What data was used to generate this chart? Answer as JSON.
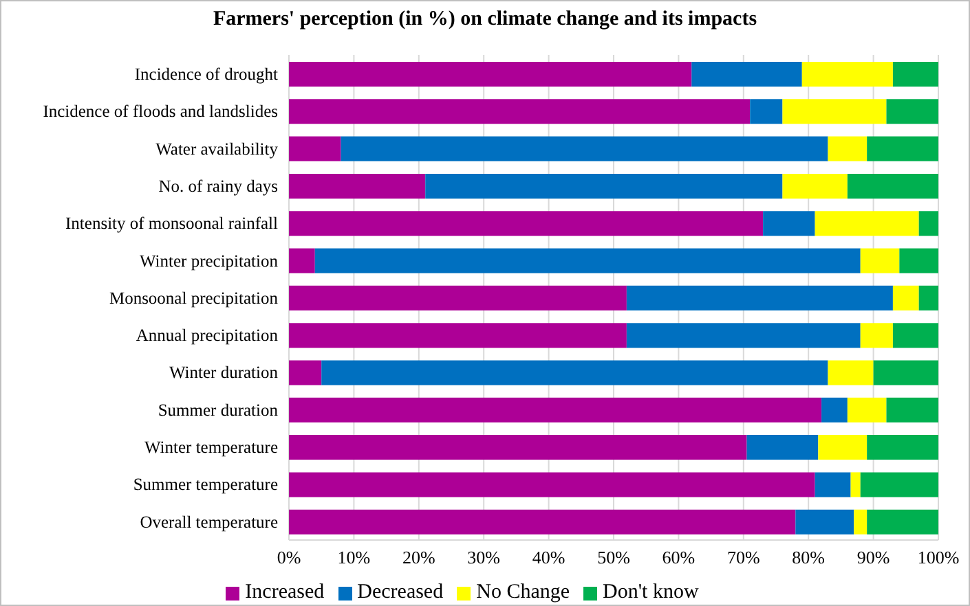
{
  "chart_data": {
    "type": "bar",
    "orientation": "horizontal",
    "stacked": true,
    "title": "Farmers' perception (in %) on climate change and its impacts",
    "categories": [
      "Incidence of drought",
      "Incidence of floods and landslides",
      "Water availability",
      "No. of rainy days",
      "Intensity of monsoonal rainfall",
      "Winter precipitation",
      "Monsoonal precipitation",
      "Annual precipitation",
      "Winter duration",
      "Summer duration",
      "Winter temperature",
      "Summer temperature",
      "Overall temperature"
    ],
    "series": [
      {
        "name": "Increased",
        "color": "#ad0096",
        "values": [
          62,
          71,
          8,
          21,
          73,
          4,
          52,
          52,
          5,
          82,
          70.5,
          81,
          78
        ]
      },
      {
        "name": "Decreased",
        "color": "#0070c0",
        "values": [
          17,
          5,
          75,
          55,
          8,
          84,
          41,
          36,
          78,
          4,
          11,
          5.5,
          9
        ]
      },
      {
        "name": "No Change",
        "color": "#ffff00",
        "values": [
          14,
          16,
          6,
          10,
          16,
          6,
          4,
          5,
          7,
          6,
          7.5,
          1.5,
          2
        ]
      },
      {
        "name": "Don't know",
        "color": "#00b050",
        "values": [
          7,
          8,
          11,
          14,
          3,
          6,
          3,
          7,
          10,
          8,
          11,
          12,
          11
        ]
      }
    ],
    "xlim": [
      0,
      100
    ],
    "xticks": [
      {
        "value": 0,
        "label": "0%"
      },
      {
        "value": 10,
        "label": "10%"
      },
      {
        "value": 20,
        "label": "20%"
      },
      {
        "value": 30,
        "label": "30%"
      },
      {
        "value": 40,
        "label": "40%"
      },
      {
        "value": 50,
        "label": "50%"
      },
      {
        "value": 60,
        "label": "60%"
      },
      {
        "value": 70,
        "label": "70%"
      },
      {
        "value": 80,
        "label": "80%"
      },
      {
        "value": 90,
        "label": "90%"
      },
      {
        "value": 100,
        "label": "100%"
      }
    ],
    "grid": "x",
    "legend": "bottom"
  }
}
